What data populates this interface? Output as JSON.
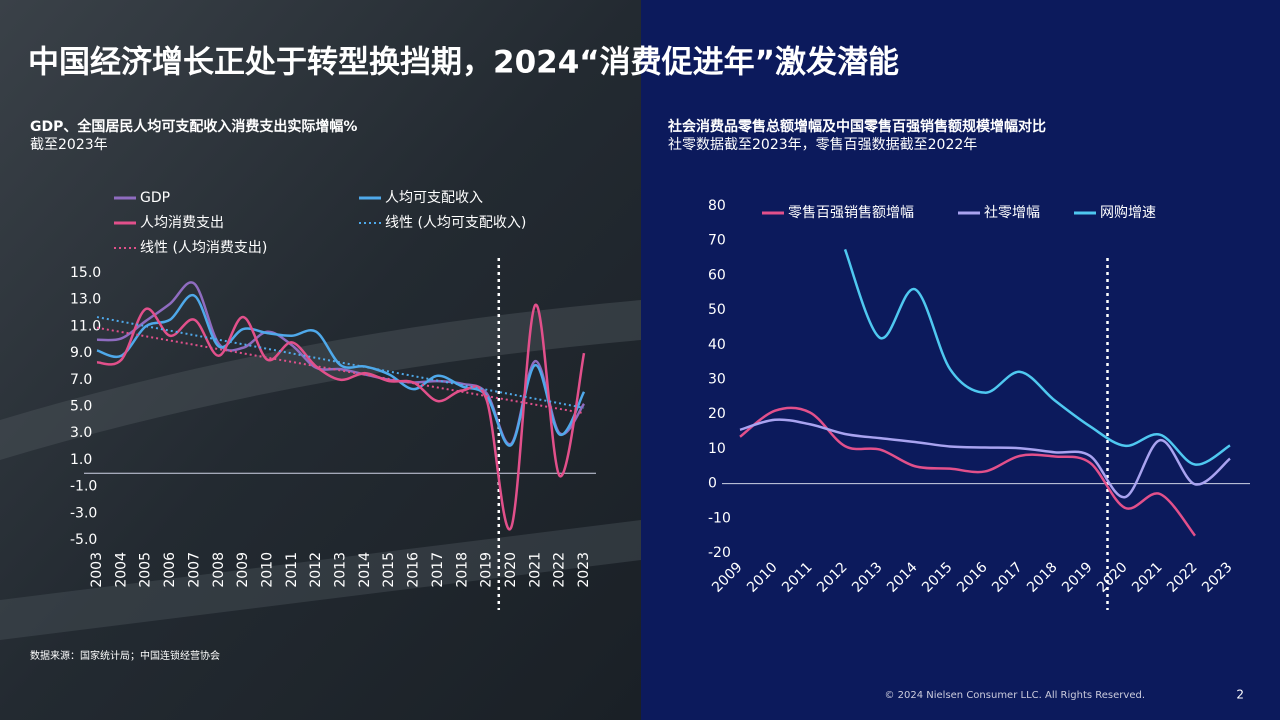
{
  "title": "中国经济增长正处于转型换挡期，2024“消费促进年”激发潜能",
  "chart_data": [
    {
      "type": "line",
      "title": "GDP、全国居民人均可支配收入消费支出实际增幅%",
      "subtitle": "截至2023年",
      "categories": [
        "2003",
        "2004",
        "2005",
        "2006",
        "2007",
        "2008",
        "2009",
        "2010",
        "2011",
        "2012",
        "2013",
        "2014",
        "2015",
        "2016",
        "2017",
        "2018",
        "2019",
        "2020",
        "2021",
        "2022",
        "2023"
      ],
      "series": [
        {
          "name": "GDP",
          "color": "#8f6cc0",
          "values": [
            10.0,
            10.1,
            11.4,
            12.7,
            14.2,
            9.7,
            9.4,
            10.6,
            9.6,
            7.9,
            7.8,
            7.4,
            7.0,
            6.8,
            6.9,
            6.7,
            6.0,
            2.2,
            8.4,
            3.0,
            5.2
          ]
        },
        {
          "name": "人均可支配收入",
          "color": "#4fa9ea",
          "values": [
            9.2,
            8.8,
            11.0,
            11.5,
            13.3,
            9.5,
            10.8,
            10.5,
            10.3,
            10.6,
            8.1,
            8.0,
            7.4,
            6.3,
            7.3,
            6.5,
            5.8,
            2.1,
            8.1,
            2.9,
            6.1
          ]
        },
        {
          "name": "人均消费支出",
          "color": "#e2508b",
          "values": [
            8.3,
            8.5,
            12.3,
            10.3,
            11.5,
            8.8,
            11.7,
            8.5,
            9.8,
            8.0,
            7.0,
            7.5,
            6.9,
            6.8,
            5.4,
            6.2,
            5.5,
            -4.1,
            12.6,
            -0.2,
            9.0
          ]
        },
        {
          "name": "线性 (人均可支配收入)",
          "color": "#4fa9ea",
          "dotted": true,
          "values": [
            11.7,
            11.36,
            11.02,
            10.68,
            10.34,
            10.0,
            9.66,
            9.32,
            8.98,
            8.64,
            8.3,
            7.96,
            7.62,
            7.28,
            6.94,
            6.6,
            6.26,
            5.92,
            5.58,
            5.24,
            4.9
          ]
        },
        {
          "name": "线性 (人均消费支出)",
          "color": "#e2508b",
          "dotted": true,
          "values": [
            10.9,
            10.58,
            10.26,
            9.94,
            9.62,
            9.3,
            8.98,
            8.66,
            8.34,
            8.02,
            7.7,
            7.38,
            7.06,
            6.74,
            6.42,
            6.1,
            5.78,
            5.46,
            5.14,
            4.82,
            4.5
          ]
        }
      ],
      "ylim": [
        -5,
        15
      ],
      "yticks": [
        {
          "value": 15,
          "label": "15.0"
        },
        {
          "value": 13,
          "label": "13.0"
        },
        {
          "value": 11,
          "label": "11.0"
        },
        {
          "value": 9,
          "label": "9.0"
        },
        {
          "value": 7,
          "label": "7.0"
        },
        {
          "value": 5,
          "label": "5.0"
        },
        {
          "value": 3,
          "label": "3.0"
        },
        {
          "value": 1,
          "label": "1.0"
        },
        {
          "value": -1,
          "label": "-1.0"
        },
        {
          "value": -3,
          "label": "-3.0"
        },
        {
          "value": -5,
          "label": "-5.0"
        }
      ],
      "grid": false,
      "legend": "top"
    },
    {
      "type": "line",
      "title": "社会消费品零售总额增幅及中国零售百强销售额规模增幅对比",
      "subtitle": "社零数据截至2023年，零售百强数据截至2022年",
      "categories": [
        "2009",
        "2010",
        "2011",
        "2012",
        "2013",
        "2014",
        "2015",
        "2016",
        "2017",
        "2018",
        "2019",
        "2020",
        "2021",
        "2022",
        "2023"
      ],
      "series": [
        {
          "name": "零售百强销售额增幅",
          "color": "#e2508b",
          "values": [
            13.5,
            21.0,
            20.5,
            10.8,
            9.8,
            5.0,
            4.3,
            3.5,
            8.0,
            7.8,
            6.0,
            -7.0,
            -3.0,
            -15.0,
            null
          ]
        },
        {
          "name": "社零增幅",
          "color": "#a9a3f0",
          "values": [
            15.5,
            18.4,
            17.1,
            14.3,
            13.1,
            12.0,
            10.7,
            10.4,
            10.2,
            9.0,
            8.0,
            -3.9,
            12.5,
            -0.2,
            7.2
          ]
        },
        {
          "name": "网购增速",
          "color": "#4fc8f0",
          "values": [
            null,
            null,
            null,
            67.5,
            42.0,
            56.0,
            33.0,
            26.2,
            32.2,
            23.9,
            16.5,
            10.9,
            14.1,
            5.5,
            11.0
          ]
        }
      ],
      "ylim": [
        -20,
        80
      ],
      "yticks": [
        80,
        70,
        60,
        50,
        40,
        30,
        20,
        10,
        0,
        -10,
        -20
      ],
      "grid": false,
      "legend": "top"
    }
  ],
  "source": "数据来源：国家统计局；中国连锁经营协会",
  "footer": "© 2024 Nielsen Consumer LLC. All Rights Reserved.",
  "page_number": "2"
}
